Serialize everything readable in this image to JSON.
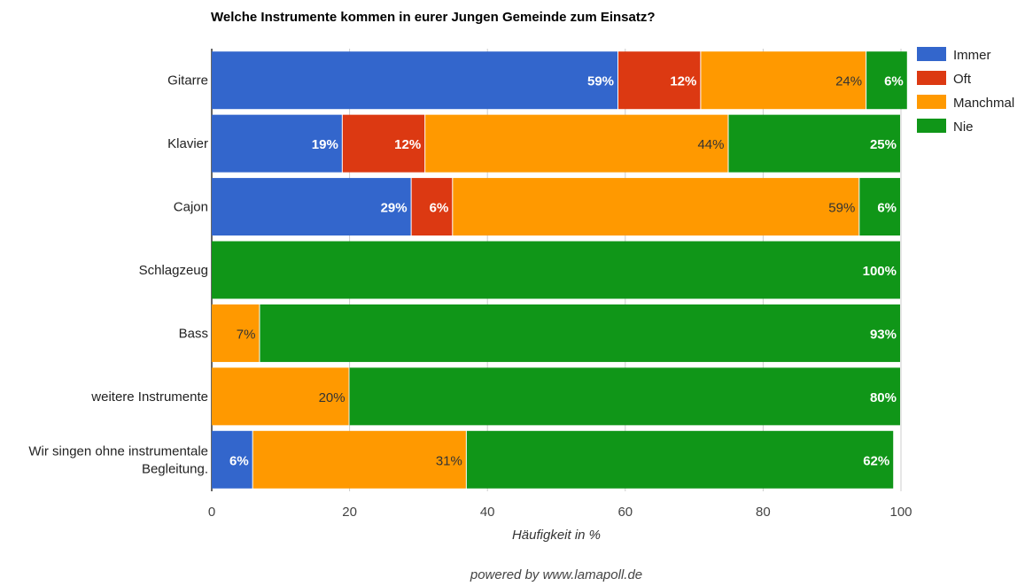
{
  "chart_data": {
    "type": "bar",
    "orientation": "horizontal",
    "stacked": true,
    "title": "Welche Instrumente kommen in eurer Jungen Gemeinde zum Einsatz?",
    "xlabel": "Häufigkeit in %",
    "ylabel": "",
    "xlim": [
      0,
      100
    ],
    "xticks": [
      "0",
      "20",
      "40",
      "60",
      "80",
      "100"
    ],
    "grid": true,
    "legend_position": "right",
    "categories": [
      "Gitarre",
      "Klavier",
      "Cajon",
      "Schlagzeug",
      "Bass",
      "weitere Instrumente",
      "Wir singen ohne instrumentale Begleitung."
    ],
    "series": [
      {
        "name": "Immer",
        "color": "#3366cc",
        "label_color": "#ffffff",
        "values": [
          59,
          19,
          29,
          0,
          0,
          0,
          6
        ]
      },
      {
        "name": "Oft",
        "color": "#dc3912",
        "label_color": "#ffffff",
        "values": [
          12,
          12,
          6,
          0,
          0,
          0,
          0
        ]
      },
      {
        "name": "Manchmal",
        "color": "#ff9900",
        "label_color": "#333333",
        "values": [
          24,
          44,
          59,
          0,
          7,
          20,
          31
        ]
      },
      {
        "name": "Nie",
        "color": "#109618",
        "label_color": "#ffffff",
        "values": [
          6,
          25,
          6,
          100,
          93,
          80,
          62
        ]
      }
    ]
  },
  "footer": "powered by www.lamapoll.de"
}
